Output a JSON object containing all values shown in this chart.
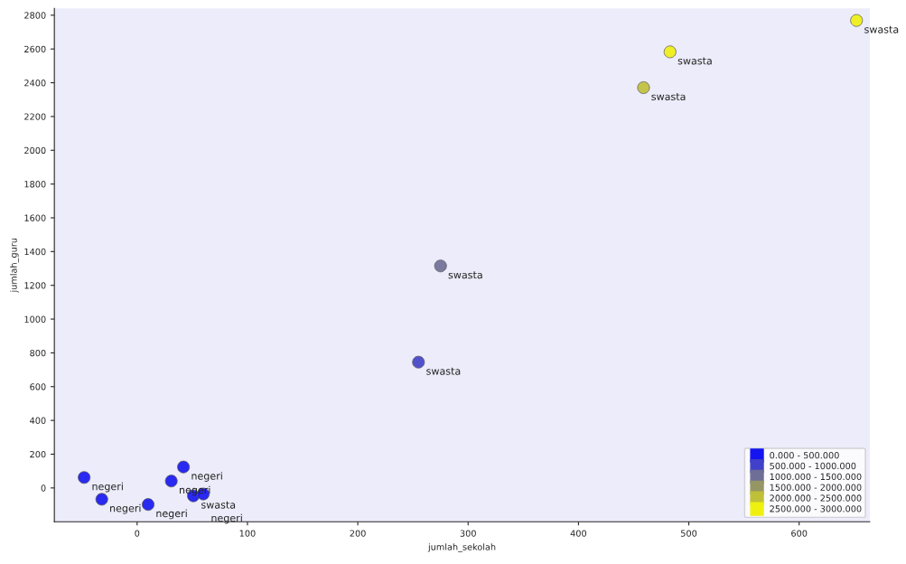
{
  "chart_data": {
    "type": "scatter",
    "xlabel": "jumlah_sekolah",
    "ylabel": "jumlah_guru",
    "xlim": [
      -75,
      664
    ],
    "ylim": [
      -200,
      2840
    ],
    "xticks": [
      0,
      100,
      200,
      300,
      400,
      500,
      600
    ],
    "yticks": [
      0,
      200,
      400,
      600,
      800,
      1000,
      1200,
      1400,
      1600,
      1800,
      2000,
      2200,
      2400,
      2600,
      2800
    ],
    "grid": false,
    "legend": "bottom right",
    "marker": "circle",
    "series": [
      {
        "name": "0.000 - 500.000",
        "color": "#1414f0",
        "x": [
          -48,
          -32,
          10,
          31,
          42,
          51,
          60
        ],
        "values": [
          62,
          -67,
          -98,
          41,
          124,
          -47,
          -36
        ]
      },
      {
        "name": "500.000 - 1000.000",
        "color": "#4040c8",
        "x": [
          255
        ],
        "values": [
          745
        ]
      },
      {
        "name": "1000.000 - 1500.000",
        "color": "#6e6e96",
        "x": [
          275
        ],
        "values": [
          1315
        ]
      },
      {
        "name": "1500.000 - 2000.000",
        "color": "#969664"
      },
      {
        "name": "2000.000 - 2500.000",
        "color": "#c0c038",
        "x": [
          459
        ],
        "values": [
          2371
        ]
      },
      {
        "name": "2500.000 - 3000.000",
        "color": "#f0f010",
        "x": [
          483,
          652
        ],
        "values": [
          2583,
          2769
        ]
      }
    ],
    "annotations": [
      {
        "text": "negeri",
        "x": -48,
        "y": 62
      },
      {
        "text": "negeri",
        "x": -32,
        "y": -67
      },
      {
        "text": "negeri",
        "x": 10,
        "y": -98
      },
      {
        "text": "negeri",
        "x": 31,
        "y": 41
      },
      {
        "text": "negeri",
        "x": 42,
        "y": 124
      },
      {
        "text": "swasta",
        "x": 51,
        "y": -47
      },
      {
        "text": "negeri",
        "x": 60,
        "y": -36
      },
      {
        "text": "swasta",
        "x": 255,
        "y": 745
      },
      {
        "text": "swasta",
        "x": 275,
        "y": 1315
      },
      {
        "text": "swasta",
        "x": 459,
        "y": 2371
      },
      {
        "text": "swasta",
        "x": 483,
        "y": 2583
      },
      {
        "text": "swasta",
        "x": 652,
        "y": 2769
      }
    ]
  }
}
